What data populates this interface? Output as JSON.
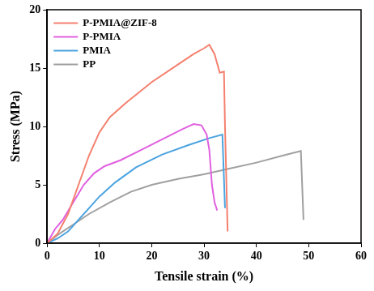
{
  "chart_data": {
    "type": "line",
    "xlabel": "Tensile strain (%)",
    "ylabel": "Stress (MPa)",
    "xlim": [
      0,
      60
    ],
    "xticks": [
      0,
      10,
      20,
      30,
      40,
      50,
      60
    ],
    "ylim": [
      0,
      20
    ],
    "yticks": [
      0,
      5,
      10,
      15,
      20
    ],
    "grid": false,
    "legend": "upper left",
    "series": [
      {
        "name": "P-PMIA@ZIF-8",
        "color": "#f4806e",
        "x": [
          0,
          2,
          4,
          6,
          8,
          10,
          12,
          15,
          20,
          25,
          28,
          30,
          31,
          32,
          33,
          33.8,
          34,
          34.5
        ],
        "values": [
          0,
          0.8,
          2.5,
          5,
          7.5,
          9.5,
          10.8,
          12,
          13.8,
          15.3,
          16.2,
          16.7,
          17,
          16.2,
          14.6,
          14.7,
          10,
          1
        ]
      },
      {
        "name": "P-PMIA",
        "color": "#e060e0",
        "x": [
          0,
          1.5,
          3,
          5,
          7,
          9,
          11,
          14,
          18,
          22,
          26,
          28,
          29.5,
          30.5,
          31,
          31.5,
          32,
          32.5
        ],
        "values": [
          0,
          1.2,
          2,
          3.5,
          5,
          6,
          6.6,
          7.1,
          8,
          8.9,
          9.8,
          10.2,
          10.1,
          9.3,
          8,
          5,
          3.5,
          2.8
        ]
      },
      {
        "name": "PMIA",
        "color": "#4aa3df",
        "x": [
          0,
          2,
          4,
          6,
          8,
          10,
          13,
          17,
          22,
          27,
          31,
          33.5,
          34
        ],
        "values": [
          0,
          0.4,
          1,
          2,
          3,
          4,
          5.2,
          6.5,
          7.6,
          8.4,
          9,
          9.3,
          3
        ]
      },
      {
        "name": "PP",
        "color": "#a0a0a0",
        "x": [
          0,
          2,
          5,
          8,
          12,
          16,
          20,
          25,
          30,
          35,
          40,
          45,
          48.5,
          49
        ],
        "values": [
          0,
          0.7,
          1.6,
          2.5,
          3.5,
          4.4,
          5,
          5.5,
          5.9,
          6.4,
          6.9,
          7.5,
          7.9,
          2
        ]
      }
    ]
  }
}
